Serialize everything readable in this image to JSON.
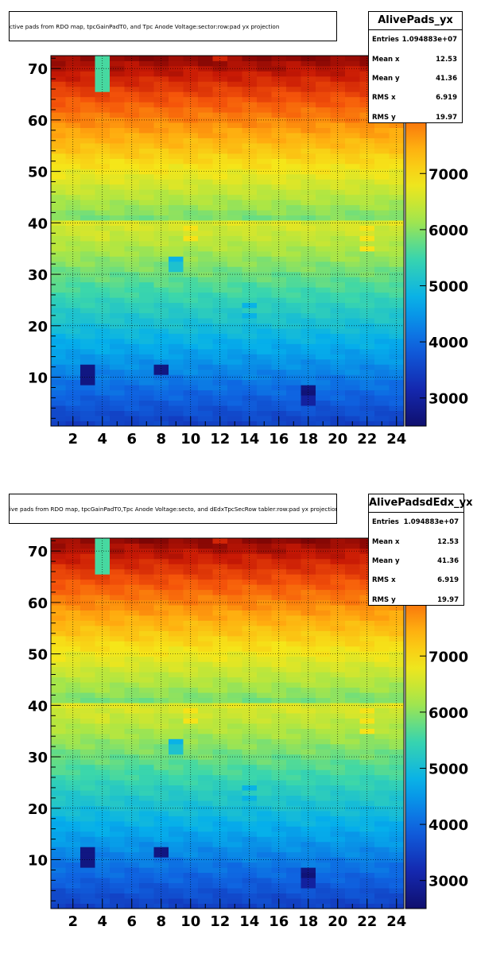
{
  "chart_data": [
    {
      "type": "heatmap",
      "name": "AlivePads_yx",
      "title": "ctive pads from RDO map, tpcGainPadT0,  and Tpc Anode Voltage:sector:row:pad yx projection",
      "xlim": [
        0.5,
        24.5
      ],
      "ylim": [
        0.5,
        72.5
      ],
      "xticks": [
        2,
        4,
        6,
        8,
        10,
        12,
        14,
        16,
        18,
        20,
        22,
        24
      ],
      "yticks": [
        10,
        20,
        30,
        40,
        50,
        60,
        70
      ],
      "zticks": [
        3000,
        4000,
        5000,
        6000,
        7000
      ],
      "zlim": [
        2500,
        9100
      ],
      "grid": true,
      "palette": "rainbow",
      "stats": {
        "entries_label": "Entries",
        "entries": "1.094883e+07",
        "meanx_label": "Mean x",
        "meanx": "12.53",
        "meany_label": "Mean y",
        "meany": "41.36",
        "rmsx_label": "RMS x",
        "rmsx": "6.919",
        "rmsy_label": "RMS y",
        "rmsy": "19.97"
      },
      "special_cells": [
        {
          "x": 4,
          "y": 66,
          "z": 5600
        },
        {
          "x": 4,
          "y": 67,
          "z": 5600
        },
        {
          "x": 4,
          "y": 68,
          "z": 5600
        },
        {
          "x": 4,
          "y": 69,
          "z": 5600
        },
        {
          "x": 4,
          "y": 70,
          "z": 5600
        },
        {
          "x": 4,
          "y": 71,
          "z": 5600
        },
        {
          "x": 4,
          "y": 72,
          "z": 5600
        },
        {
          "x": 4,
          "y": 37,
          "z": 6600
        },
        {
          "x": 4,
          "y": 38,
          "z": 6600
        },
        {
          "x": 3,
          "y": 9,
          "z": 2700
        },
        {
          "x": 3,
          "y": 10,
          "z": 2700
        },
        {
          "x": 3,
          "y": 11,
          "z": 2700
        },
        {
          "x": 3,
          "y": 12,
          "z": 2700
        },
        {
          "x": 8,
          "y": 11,
          "z": 2700
        },
        {
          "x": 8,
          "y": 12,
          "z": 2700
        },
        {
          "x": 18,
          "y": 5,
          "z": 3000
        },
        {
          "x": 18,
          "y": 6,
          "z": 3000
        },
        {
          "x": 18,
          "y": 7,
          "z": 2600
        },
        {
          "x": 18,
          "y": 8,
          "z": 2700
        },
        {
          "x": 9,
          "y": 31,
          "z": 5100
        },
        {
          "x": 9,
          "y": 32,
          "z": 5100
        },
        {
          "x": 9,
          "y": 33,
          "z": 4800
        },
        {
          "x": 14,
          "y": 22,
          "z": 4800
        },
        {
          "x": 14,
          "y": 24,
          "z": 4800
        },
        {
          "x": 10,
          "y": 37,
          "z": 6900
        },
        {
          "x": 10,
          "y": 39,
          "z": 6900
        },
        {
          "x": 22,
          "y": 35,
          "z": 6900
        },
        {
          "x": 22,
          "y": 37,
          "z": 6900
        },
        {
          "x": 22,
          "y": 39,
          "z": 6900
        },
        {
          "x": 7,
          "y": 27,
          "z": 5500
        },
        {
          "x": 7,
          "y": 28,
          "z": 5500
        },
        {
          "x": 12,
          "y": 72,
          "z": 8600
        }
      ]
    },
    {
      "type": "heatmap",
      "name": "AlivePadsdEdx_yx",
      "title": "ive pads from RDO map, tpcGainPadT0,Tpc Anode Voltage:secto, and dEdxTpcSecRow tabler:row:pad yx projection",
      "xlim": [
        0.5,
        24.5
      ],
      "ylim": [
        0.5,
        72.5
      ],
      "xticks": [
        2,
        4,
        6,
        8,
        10,
        12,
        14,
        16,
        18,
        20,
        22,
        24
      ],
      "yticks": [
        10,
        20,
        30,
        40,
        50,
        60,
        70
      ],
      "zticks": [
        3000,
        4000,
        5000,
        6000,
        7000
      ],
      "zlim": [
        2500,
        9100
      ],
      "grid": true,
      "palette": "rainbow",
      "stats": {
        "entries_label": "Entries",
        "entries": "1.094883e+07",
        "meanx_label": "Mean x",
        "meanx": "12.53",
        "meany_label": "Mean y",
        "meany": "41.36",
        "rmsx_label": "RMS x",
        "rmsx": "6.919",
        "rmsy_label": "RMS y",
        "rmsy": "19.97"
      },
      "special_cells": [
        {
          "x": 4,
          "y": 66,
          "z": 5600
        },
        {
          "x": 4,
          "y": 67,
          "z": 5600
        },
        {
          "x": 4,
          "y": 68,
          "z": 5600
        },
        {
          "x": 4,
          "y": 69,
          "z": 5600
        },
        {
          "x": 4,
          "y": 70,
          "z": 5600
        },
        {
          "x": 4,
          "y": 71,
          "z": 5600
        },
        {
          "x": 4,
          "y": 72,
          "z": 5600
        },
        {
          "x": 4,
          "y": 37,
          "z": 6600
        },
        {
          "x": 4,
          "y": 38,
          "z": 6600
        },
        {
          "x": 3,
          "y": 9,
          "z": 2700
        },
        {
          "x": 3,
          "y": 10,
          "z": 2700
        },
        {
          "x": 3,
          "y": 11,
          "z": 2700
        },
        {
          "x": 3,
          "y": 12,
          "z": 2700
        },
        {
          "x": 8,
          "y": 11,
          "z": 2700
        },
        {
          "x": 8,
          "y": 12,
          "z": 2700
        },
        {
          "x": 18,
          "y": 5,
          "z": 3000
        },
        {
          "x": 18,
          "y": 6,
          "z": 3000
        },
        {
          "x": 18,
          "y": 7,
          "z": 2600
        },
        {
          "x": 18,
          "y": 8,
          "z": 2700
        },
        {
          "x": 9,
          "y": 31,
          "z": 5100
        },
        {
          "x": 9,
          "y": 32,
          "z": 5100
        },
        {
          "x": 9,
          "y": 33,
          "z": 4800
        },
        {
          "x": 14,
          "y": 22,
          "z": 4800
        },
        {
          "x": 14,
          "y": 24,
          "z": 4800
        },
        {
          "x": 10,
          "y": 37,
          "z": 6900
        },
        {
          "x": 10,
          "y": 39,
          "z": 6900
        },
        {
          "x": 22,
          "y": 35,
          "z": 6900
        },
        {
          "x": 22,
          "y": 37,
          "z": 6900
        },
        {
          "x": 22,
          "y": 39,
          "z": 6900
        },
        {
          "x": 7,
          "y": 27,
          "z": 5500
        },
        {
          "x": 7,
          "y": 28,
          "z": 5500
        },
        {
          "x": 12,
          "y": 72,
          "z": 8600
        }
      ]
    }
  ]
}
